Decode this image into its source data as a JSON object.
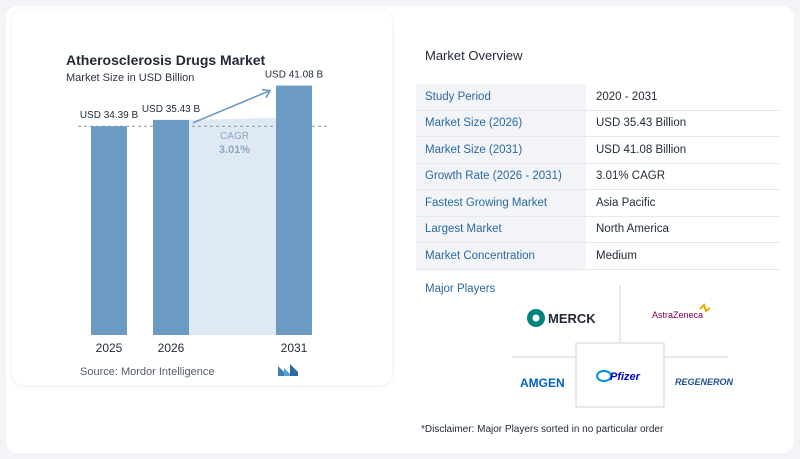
{
  "chart": {
    "title": "Atherosclerosis Drugs Market",
    "subtitle": "Market Size in USD Billion",
    "cagr_label": "CAGR",
    "cagr_value": "3.01%",
    "source": "Source:  Mordor Intelligence"
  },
  "chart_data": {
    "type": "bar",
    "categories": [
      "2025",
      "2026",
      "2031"
    ],
    "values": [
      34.39,
      35.43,
      41.08
    ],
    "value_labels": [
      "USD 34.39 B",
      "USD 35.43 B",
      "USD 41.08 B"
    ],
    "title": "Atherosclerosis Drugs Market",
    "subtitle": "Market Size in USD Billion",
    "xlabel": "",
    "ylabel": "",
    "ylim": [
      0,
      42
    ],
    "annotation": "CAGR 3.01%",
    "colors": {
      "bar": "#6b9bc3",
      "shade": "#dfe9f3",
      "arrow": "#6b9bc3",
      "cagr_text": "#8aa6c2"
    }
  },
  "overview": {
    "title": "Market Overview",
    "rows": [
      {
        "key": "Study Period",
        "value": "2020 - 2031"
      },
      {
        "key": "Market Size (2026)",
        "value": "USD 35.43 Billion"
      },
      {
        "key": "Market Size (2031)",
        "value": "USD 41.08 Billion"
      },
      {
        "key": "Growth Rate (2026 - 2031)",
        "value": "3.01% CAGR"
      },
      {
        "key": "Fastest Growing Market",
        "value": "Asia Pacific"
      },
      {
        "key": "Largest Market",
        "value": "North America"
      },
      {
        "key": "Market Concentration",
        "value": "Medium"
      }
    ]
  },
  "players": {
    "title": "Major Players",
    "names": [
      "MERCK",
      "AstraZeneca",
      "AMGEN",
      "Pfizer",
      "REGENERON"
    ]
  },
  "disclaimer": "*Disclaimer: Major Players sorted in no particular order"
}
